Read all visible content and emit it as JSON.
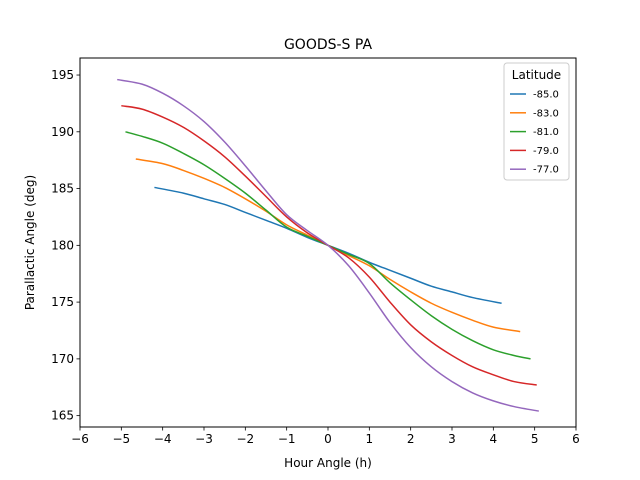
{
  "chart_data": {
    "type": "line",
    "title": "GOODS-S PA",
    "xlabel": "Hour Angle (h)",
    "ylabel": "Parallactic Angle (deg)",
    "xlim": [
      -6,
      6
    ],
    "ylim": [
      164,
      196.5
    ],
    "xticks": [
      -6,
      -5,
      -4,
      -3,
      -2,
      -1,
      0,
      1,
      2,
      3,
      4,
      5,
      6
    ],
    "yticks": [
      165,
      170,
      175,
      180,
      185,
      190,
      195
    ],
    "grid": false,
    "legend": {
      "title": "Latitude",
      "placement": "top-right"
    },
    "series": [
      {
        "name": "-85.0",
        "color": "#1f77b4",
        "x": [
          -4.2,
          -3.5,
          -3.0,
          -2.5,
          -2.0,
          -1.5,
          -1.0,
          -0.5,
          0.0,
          0.5,
          1.0,
          1.5,
          2.0,
          2.5,
          3.0,
          3.5,
          4.2
        ],
        "y": [
          185.1,
          184.6,
          184.1,
          183.6,
          182.9,
          182.2,
          181.5,
          180.7,
          180.0,
          179.3,
          178.5,
          177.8,
          177.1,
          176.4,
          175.9,
          175.4,
          174.9
        ]
      },
      {
        "name": "-83.0",
        "color": "#ff7f0e",
        "x": [
          -4.65,
          -4.0,
          -3.5,
          -3.0,
          -2.5,
          -2.0,
          -1.5,
          -1.0,
          -0.5,
          0.0,
          0.5,
          1.0,
          1.5,
          2.0,
          2.5,
          3.0,
          3.5,
          4.0,
          4.65
        ],
        "y": [
          187.6,
          187.2,
          186.6,
          185.9,
          185.1,
          184.1,
          183.0,
          181.8,
          180.9,
          180.0,
          179.1,
          178.2,
          177.0,
          175.9,
          174.9,
          174.1,
          173.4,
          172.8,
          172.4
        ]
      },
      {
        "name": "-81.0",
        "color": "#2ca02c",
        "x": [
          -4.9,
          -4.5,
          -4.0,
          -3.5,
          -3.0,
          -2.5,
          -2.0,
          -1.5,
          -1.0,
          -0.5,
          0.0,
          0.5,
          1.0,
          1.5,
          2.0,
          2.5,
          3.0,
          3.5,
          4.0,
          4.5,
          4.9
        ],
        "y": [
          190.0,
          189.6,
          189.0,
          188.1,
          187.1,
          185.9,
          184.6,
          183.1,
          181.6,
          180.8,
          180.0,
          179.2,
          178.4,
          176.7,
          175.2,
          173.8,
          172.6,
          171.6,
          170.8,
          170.3,
          170.0
        ]
      },
      {
        "name": "-79.0",
        "color": "#d62728",
        "x": [
          -5.0,
          -4.5,
          -4.0,
          -3.5,
          -3.0,
          -2.5,
          -2.0,
          -1.5,
          -1.0,
          -0.5,
          0.0,
          0.5,
          1.0,
          1.5,
          2.0,
          2.5,
          3.0,
          3.5,
          4.0,
          4.5,
          5.05
        ],
        "y": [
          192.3,
          192.0,
          191.3,
          190.4,
          189.2,
          187.8,
          186.1,
          184.3,
          182.5,
          181.1,
          180.0,
          178.9,
          177.2,
          175.0,
          173.0,
          171.5,
          170.3,
          169.3,
          168.6,
          168.0,
          167.7
        ]
      },
      {
        "name": "-77.0",
        "color": "#9467bd",
        "x": [
          -5.1,
          -4.5,
          -4.0,
          -3.5,
          -3.0,
          -2.5,
          -2.0,
          -1.5,
          -1.0,
          -0.5,
          0.0,
          0.5,
          1.0,
          1.5,
          2.0,
          2.5,
          3.0,
          3.5,
          4.0,
          4.5,
          5.1
        ],
        "y": [
          194.6,
          194.2,
          193.4,
          192.3,
          190.9,
          189.1,
          187.0,
          184.8,
          182.7,
          181.3,
          180.0,
          178.2,
          175.8,
          173.2,
          171.0,
          169.3,
          168.0,
          167.0,
          166.3,
          165.8,
          165.4
        ]
      }
    ]
  }
}
